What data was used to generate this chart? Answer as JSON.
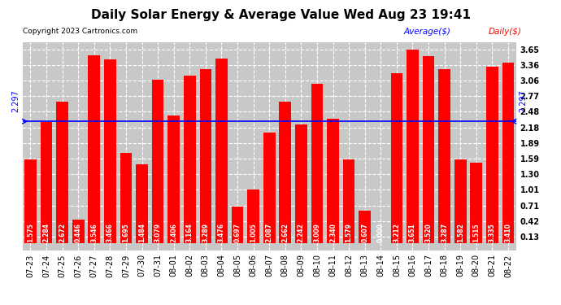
{
  "title": "Daily Solar Energy & Average Value Wed Aug 23 19:41",
  "copyright": "Copyright 2023 Cartronics.com",
  "average_label": "Average($)",
  "daily_label": "Daily($)",
  "average_value": 2.297,
  "average_color": "blue",
  "bar_color": "red",
  "categories": [
    "07-23",
    "07-24",
    "07-25",
    "07-26",
    "07-27",
    "07-28",
    "07-29",
    "07-30",
    "07-31",
    "08-01",
    "08-02",
    "08-03",
    "08-04",
    "08-05",
    "08-06",
    "08-07",
    "08-08",
    "08-09",
    "08-10",
    "08-11",
    "08-12",
    "08-13",
    "08-14",
    "08-15",
    "08-16",
    "08-17",
    "08-18",
    "08-19",
    "08-20",
    "08-21",
    "08-22"
  ],
  "values": [
    1.575,
    2.284,
    2.672,
    0.446,
    3.546,
    3.466,
    1.695,
    1.484,
    3.079,
    2.406,
    3.164,
    3.289,
    3.476,
    0.697,
    1.005,
    2.087,
    2.662,
    2.242,
    3.009,
    2.34,
    1.579,
    0.607,
    0.0,
    3.212,
    3.651,
    3.52,
    3.287,
    1.582,
    1.515,
    3.335,
    3.41
  ],
  "yticks": [
    0.13,
    0.42,
    0.71,
    1.01,
    1.3,
    1.59,
    1.89,
    2.18,
    2.48,
    2.77,
    3.06,
    3.36,
    3.65
  ],
  "ylim": [
    -0.13,
    3.78
  ],
  "background_color": "#ffffff",
  "grid_color": "white",
  "plot_bg_color": "#c8c8c8",
  "title_fontsize": 11,
  "tick_fontsize": 7,
  "value_fontsize": 5.5,
  "avg_annotation_fontsize": 7
}
